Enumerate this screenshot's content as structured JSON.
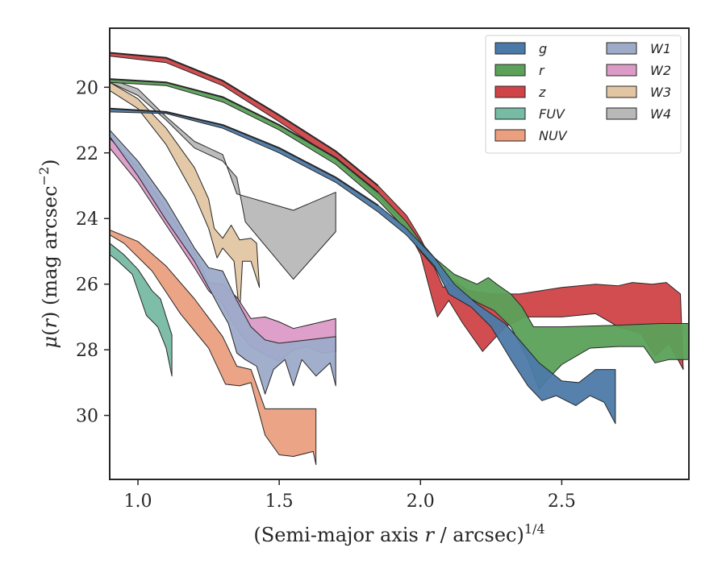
{
  "chart_data": {
    "type": "area",
    "xlabel": "(Semi-major axis r / arcsec)",
    "xlabel_var": "r",
    "xlabel_exponent": "1/4",
    "ylabel": "μ(r) (mag arcsec",
    "ylabel_var": "r",
    "ylabel_exponent": "−2",
    "xlim": [
      0.9,
      2.95
    ],
    "ylim": [
      31.95,
      18.2
    ],
    "y_inverted": true,
    "xticks": [
      1.0,
      1.5,
      2.0,
      2.5
    ],
    "xtick_labels": [
      "1.0",
      "1.5",
      "2.0",
      "2.5"
    ],
    "yticks": [
      20,
      22,
      24,
      26,
      28,
      30
    ],
    "ytick_labels": [
      "20",
      "22",
      "24",
      "26",
      "28",
      "30"
    ],
    "grid": false,
    "legend_position": "top-right",
    "legend_columns": 2,
    "series": [
      {
        "name": "g",
        "color": "#4c7aa8",
        "upper": [
          [
            0.9,
            20.65
          ],
          [
            1.1,
            20.75
          ],
          [
            1.3,
            21.15
          ],
          [
            1.5,
            21.85
          ],
          [
            1.7,
            22.75
          ],
          [
            1.85,
            23.6
          ],
          [
            1.95,
            24.3
          ],
          [
            2.05,
            25.2
          ],
          [
            2.12,
            26.0
          ],
          [
            2.2,
            26.6
          ],
          [
            2.3,
            27.2
          ],
          [
            2.36,
            27.8
          ],
          [
            2.42,
            28.4
          ],
          [
            2.5,
            28.95
          ],
          [
            2.56,
            29.0
          ],
          [
            2.62,
            28.6
          ],
          [
            2.69,
            28.6
          ]
        ],
        "lower": [
          [
            2.69,
            30.25
          ],
          [
            2.65,
            29.6
          ],
          [
            2.6,
            29.4
          ],
          [
            2.55,
            29.7
          ],
          [
            2.48,
            29.4
          ],
          [
            2.43,
            29.55
          ],
          [
            2.38,
            29.1
          ],
          [
            2.32,
            28.3
          ],
          [
            2.25,
            27.3
          ],
          [
            2.18,
            26.7
          ],
          [
            2.1,
            26.3
          ],
          [
            2.05,
            25.45
          ],
          [
            1.95,
            24.5
          ],
          [
            1.85,
            23.8
          ],
          [
            1.7,
            22.9
          ],
          [
            1.5,
            22.0
          ],
          [
            1.3,
            21.25
          ],
          [
            1.1,
            20.8
          ],
          [
            0.9,
            20.75
          ]
        ]
      },
      {
        "name": "r",
        "color": "#5ba15a",
        "upper": [
          [
            0.9,
            19.75
          ],
          [
            1.1,
            19.85
          ],
          [
            1.3,
            20.3
          ],
          [
            1.5,
            21.15
          ],
          [
            1.7,
            22.15
          ],
          [
            1.85,
            23.2
          ],
          [
            1.95,
            24.1
          ],
          [
            2.0,
            24.7
          ],
          [
            2.05,
            25.2
          ],
          [
            2.12,
            25.7
          ],
          [
            2.2,
            26.0
          ],
          [
            2.24,
            25.8
          ],
          [
            2.27,
            26.0
          ],
          [
            2.32,
            26.3
          ],
          [
            2.36,
            26.7
          ],
          [
            2.4,
            27.3
          ],
          [
            2.5,
            27.3
          ],
          [
            2.7,
            27.25
          ],
          [
            2.85,
            27.2
          ],
          [
            2.95,
            27.2
          ]
        ],
        "lower": [
          [
            2.95,
            28.3
          ],
          [
            2.88,
            28.3
          ],
          [
            2.83,
            28.4
          ],
          [
            2.79,
            27.9
          ],
          [
            2.7,
            27.9
          ],
          [
            2.6,
            27.95
          ],
          [
            2.5,
            28.45
          ],
          [
            2.45,
            28.9
          ],
          [
            2.42,
            29.2
          ],
          [
            2.38,
            28.3
          ],
          [
            2.32,
            27.3
          ],
          [
            2.26,
            26.8
          ],
          [
            2.2,
            26.55
          ],
          [
            2.15,
            26.3
          ],
          [
            2.1,
            26.0
          ],
          [
            2.05,
            25.5
          ],
          [
            2.0,
            25.0
          ],
          [
            1.95,
            24.35
          ],
          [
            1.85,
            23.45
          ],
          [
            1.7,
            22.35
          ],
          [
            1.5,
            21.3
          ],
          [
            1.3,
            20.45
          ],
          [
            1.1,
            19.95
          ],
          [
            0.9,
            19.85
          ]
        ]
      },
      {
        "name": "z",
        "color": "#d04347",
        "upper": [
          [
            0.9,
            18.95
          ],
          [
            1.1,
            19.1
          ],
          [
            1.3,
            19.8
          ],
          [
            1.5,
            20.85
          ],
          [
            1.7,
            21.95
          ],
          [
            1.85,
            23.0
          ],
          [
            1.95,
            23.9
          ],
          [
            2.0,
            24.6
          ],
          [
            2.04,
            25.3
          ],
          [
            2.08,
            26.1
          ],
          [
            2.12,
            25.9
          ],
          [
            2.17,
            26.2
          ],
          [
            2.25,
            26.3
          ],
          [
            2.35,
            26.3
          ],
          [
            2.5,
            26.1
          ],
          [
            2.62,
            26.0
          ],
          [
            2.7,
            26.05
          ],
          [
            2.75,
            25.95
          ],
          [
            2.82,
            26.0
          ],
          [
            2.87,
            25.95
          ],
          [
            2.92,
            26.3
          ],
          [
            2.93,
            28.6
          ]
        ],
        "lower": [
          [
            2.93,
            28.6
          ],
          [
            2.88,
            27.8
          ],
          [
            2.83,
            28.2
          ],
          [
            2.78,
            27.5
          ],
          [
            2.7,
            27.3
          ],
          [
            2.62,
            26.9
          ],
          [
            2.5,
            27.0
          ],
          [
            2.37,
            27.0
          ],
          [
            2.3,
            27.3
          ],
          [
            2.22,
            28.05
          ],
          [
            2.15,
            27.2
          ],
          [
            2.1,
            26.5
          ],
          [
            2.06,
            27.0
          ],
          [
            2.04,
            26.4
          ],
          [
            2.0,
            25.1
          ],
          [
            1.95,
            24.3
          ],
          [
            1.85,
            23.3
          ],
          [
            1.7,
            22.2
          ],
          [
            1.5,
            21.05
          ],
          [
            1.3,
            19.95
          ],
          [
            1.1,
            19.25
          ],
          [
            0.9,
            19.05
          ]
        ]
      },
      {
        "name": "FUV",
        "color": "#77bba4",
        "upper": [
          [
            0.9,
            24.75
          ],
          [
            0.95,
            25.1
          ],
          [
            1.0,
            25.55
          ],
          [
            1.05,
            26.2
          ],
          [
            1.08,
            26.45
          ],
          [
            1.12,
            27.55
          ]
        ],
        "lower": [
          [
            1.12,
            28.8
          ],
          [
            1.1,
            27.95
          ],
          [
            1.07,
            27.3
          ],
          [
            1.03,
            26.95
          ],
          [
            0.98,
            25.7
          ],
          [
            0.93,
            25.3
          ],
          [
            0.9,
            25.1
          ]
        ]
      },
      {
        "name": "NUV",
        "color": "#eb9f7f",
        "upper": [
          [
            0.9,
            24.35
          ],
          [
            1.0,
            24.7
          ],
          [
            1.1,
            25.45
          ],
          [
            1.2,
            26.45
          ],
          [
            1.3,
            27.6
          ],
          [
            1.35,
            28.5
          ],
          [
            1.4,
            28.6
          ],
          [
            1.45,
            29.8
          ],
          [
            1.55,
            29.8
          ],
          [
            1.63,
            29.8
          ]
        ],
        "lower": [
          [
            1.63,
            31.5
          ],
          [
            1.62,
            31.1
          ],
          [
            1.55,
            31.25
          ],
          [
            1.5,
            31.2
          ],
          [
            1.45,
            30.6
          ],
          [
            1.4,
            29.0
          ],
          [
            1.36,
            29.1
          ],
          [
            1.31,
            29.05
          ],
          [
            1.25,
            27.95
          ],
          [
            1.15,
            26.9
          ],
          [
            1.05,
            25.6
          ],
          [
            0.95,
            24.75
          ],
          [
            0.9,
            24.5
          ]
        ]
      },
      {
        "name": "W1",
        "color": "#9dabc9",
        "upper": [
          [
            0.9,
            21.3
          ],
          [
            1.0,
            22.25
          ],
          [
            1.1,
            23.45
          ],
          [
            1.2,
            24.9
          ],
          [
            1.25,
            25.5
          ],
          [
            1.3,
            25.6
          ],
          [
            1.35,
            26.5
          ],
          [
            1.4,
            27.3
          ],
          [
            1.45,
            27.7
          ],
          [
            1.5,
            27.8
          ],
          [
            1.6,
            27.7
          ],
          [
            1.7,
            27.6
          ]
        ],
        "lower": [
          [
            1.7,
            29.1
          ],
          [
            1.68,
            28.4
          ],
          [
            1.63,
            28.8
          ],
          [
            1.58,
            28.3
          ],
          [
            1.55,
            29.1
          ],
          [
            1.52,
            28.3
          ],
          [
            1.48,
            28.6
          ],
          [
            1.45,
            29.35
          ],
          [
            1.42,
            28.5
          ],
          [
            1.38,
            28.3
          ],
          [
            1.35,
            28.1
          ],
          [
            1.32,
            27.2
          ],
          [
            1.3,
            26.9
          ],
          [
            1.25,
            26.1
          ],
          [
            1.2,
            25.3
          ],
          [
            1.1,
            24.05
          ],
          [
            1.0,
            22.7
          ],
          [
            0.9,
            21.5
          ]
        ]
      },
      {
        "name": "W2",
        "color": "#dc9bc7",
        "upper": [
          [
            0.9,
            21.55
          ],
          [
            1.0,
            22.45
          ],
          [
            1.1,
            23.7
          ],
          [
            1.2,
            25.05
          ],
          [
            1.25,
            25.95
          ],
          [
            1.3,
            26.0
          ],
          [
            1.35,
            26.4
          ],
          [
            1.4,
            27.05
          ],
          [
            1.45,
            27.0
          ],
          [
            1.5,
            27.15
          ],
          [
            1.55,
            27.35
          ],
          [
            1.6,
            27.25
          ],
          [
            1.7,
            27.05
          ]
        ],
        "lower": [
          [
            1.7,
            28.05
          ],
          [
            1.65,
            28.1
          ],
          [
            1.6,
            27.9
          ],
          [
            1.55,
            28.0
          ],
          [
            1.5,
            28.35
          ],
          [
            1.45,
            28.15
          ],
          [
            1.4,
            27.9
          ],
          [
            1.37,
            27.6
          ],
          [
            1.33,
            27.1
          ],
          [
            1.3,
            26.6
          ],
          [
            1.25,
            26.2
          ],
          [
            1.2,
            25.5
          ],
          [
            1.1,
            24.2
          ],
          [
            1.0,
            22.9
          ],
          [
            0.9,
            21.85
          ]
        ]
      },
      {
        "name": "W3",
        "color": "#e2c6a2",
        "upper": [
          [
            0.9,
            19.85
          ],
          [
            1.0,
            20.35
          ],
          [
            1.1,
            21.25
          ],
          [
            1.2,
            22.45
          ],
          [
            1.25,
            23.4
          ],
          [
            1.27,
            24.3
          ],
          [
            1.3,
            24.6
          ],
          [
            1.33,
            24.2
          ],
          [
            1.36,
            24.65
          ],
          [
            1.4,
            24.6
          ],
          [
            1.42,
            24.75
          ],
          [
            1.43,
            26.1
          ]
        ],
        "lower": [
          [
            1.43,
            26.1
          ],
          [
            1.4,
            25.3
          ],
          [
            1.37,
            25.3
          ],
          [
            1.36,
            26.9
          ],
          [
            1.34,
            25.3
          ],
          [
            1.3,
            24.9
          ],
          [
            1.28,
            25.2
          ],
          [
            1.25,
            24.3
          ],
          [
            1.2,
            23.3
          ],
          [
            1.1,
            21.75
          ],
          [
            1.0,
            20.65
          ],
          [
            0.9,
            20.1
          ]
        ]
      },
      {
        "name": "W4",
        "color": "#b8b8b8",
        "upper": [
          [
            0.9,
            19.75
          ],
          [
            1.0,
            20.05
          ],
          [
            1.1,
            20.9
          ],
          [
            1.2,
            21.65
          ],
          [
            1.3,
            22.05
          ],
          [
            1.35,
            23.25
          ],
          [
            1.55,
            23.75
          ],
          [
            1.7,
            23.2
          ]
        ],
        "lower": [
          [
            1.7,
            24.4
          ],
          [
            1.55,
            25.85
          ],
          [
            1.38,
            24.1
          ],
          [
            1.35,
            22.75
          ],
          [
            1.3,
            22.25
          ],
          [
            1.2,
            21.85
          ],
          [
            1.1,
            21.0
          ],
          [
            1.0,
            20.25
          ],
          [
            0.9,
            19.85
          ]
        ]
      }
    ]
  }
}
